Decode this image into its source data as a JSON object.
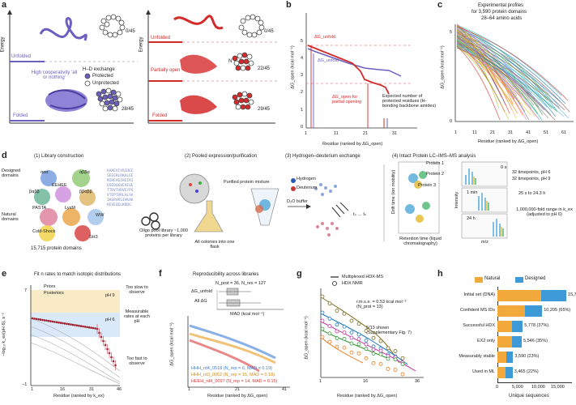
{
  "panels": {
    "a": {
      "letter": "a",
      "left": {
        "unfolded": "Unfolded",
        "folded": "Folded",
        "energy": "Energy",
        "count_top": "0/45",
        "count_bottom": "28/45",
        "legend_title": "H–D exchange",
        "protected": "Protected",
        "unprotected": "Unprotected",
        "note": "High cooperativity 'all or nothing'"
      },
      "right": {
        "unfolded": "Unfolded",
        "partially_open": "Partially open",
        "folded": "Folded",
        "energy": "Energy",
        "count_top": "0/45",
        "count_mid": "22/45",
        "count_bottom": "29/45",
        "n_label": "N"
      }
    },
    "b": {
      "letter": "b",
      "ylabel": "ΔG_open (kcal mol⁻¹)",
      "xlabel": "Residue (ranked by ΔG_open)",
      "dg_unfold": "ΔG_unfold",
      "dg_unfold2": "ΔG_unfold",
      "dg_open": "ΔG_open for partial opening",
      "expected": "Expected number of protected residues (H-bonding backbone amides)",
      "yticks": [
        "0",
        "1",
        "2",
        "3",
        "4",
        "5"
      ],
      "xticks": [
        "1",
        "11",
        "21",
        "31"
      ]
    },
    "c": {
      "letter": "c",
      "title1": "Experimental profiles",
      "title2": "for 3,590 protein domains",
      "title3": "28–64 amino acids",
      "ylabel": "ΔG_open (kcal mol⁻¹)",
      "xlabel": "Residue (ranked by ΔG_open)",
      "yticks": [
        "0",
        "1",
        "2",
        "3",
        "4",
        "5"
      ],
      "xticks": [
        "1",
        "11",
        "21",
        "31",
        "41",
        "51",
        "61"
      ]
    },
    "d": {
      "letter": "d",
      "step1": "(1) Library construction",
      "step2": "(2) Pooled expression/purification",
      "step3": "(3) Hydrogen–deuterium exchange",
      "step4": "(4) Intact Protein LC–IMS–MS analysis",
      "designed": "Designed domains",
      "natural": "Natural domains",
      "domains": {
        "aaa": "ααα",
        "abba": "αββα",
        "bab": "βαββ",
        "bbab": "ββαββ",
        "eehee": "EEHEE",
        "pasta": "PASTA",
        "lysm": "LysM",
        "ww": "WW",
        "cold_shock": "Cold-Shock",
        "sh3": "SH3"
      },
      "count": "15,715 protein domains",
      "oligo": "Oligo pool library ~1,000 proteins per library",
      "purified": "Purified protein mixture",
      "colonies": "All colonies into one flask",
      "hydrogen": "Hydrogen",
      "deuterium": "Deuterium",
      "d2o": "D₂O buffer",
      "t_range": "t₀ … tₙ",
      "protein1": "Protein 1",
      "protein2": "Protein 2",
      "protein3": "Protein 3",
      "drift": "Drift time (ion mobility)",
      "retention": "Retention time (liquid chromatography)",
      "intensity": "Intensity",
      "mz": "m/z",
      "times": [
        "0 s",
        "1 min",
        "24 h"
      ],
      "info1": "32 timepoints, pH 6",
      "info2": "32 timepoints, pH 9",
      "info3": "25 s to 24.3 h",
      "info4": "1,000,000-fold range in k_ex (adjusted to pH 6)"
    },
    "e": {
      "letter": "e",
      "title": "Fit n rates to match isotopic distributions",
      "legend_priors": "Priors",
      "legend_posteriors": "Posteriors",
      "ylabel": "−log₁₀ k_ex(pH 6), s⁻¹",
      "xlabel": "Residue (ranked by k_ex)",
      "too_slow": "Too slow to observe",
      "measurable": "Measurable rates at each pH",
      "too_fast": "Too fast to observe",
      "ph9": "pH 9",
      "ph6": "pH 6",
      "yticks": [
        "−1",
        "0",
        "1",
        "2",
        "3",
        "4",
        "5",
        "6",
        "7"
      ],
      "xticks": [
        "1",
        "6",
        "11",
        "16",
        "21",
        "26",
        "31",
        "36",
        "41",
        "46"
      ],
      "curve_labels": [
        "95",
        "75",
        "50",
        "25",
        "5"
      ]
    },
    "f": {
      "letter": "f",
      "title": "Reproducibility across libraries",
      "n_stats": "N_prot = 36, N_res = 127",
      "dg_unfold": "ΔG_unfold",
      "all_dg": "All ΔG",
      "mad_label": "MAD (kcal mol⁻¹)",
      "mad_ticks": [
        "0",
        "0.2",
        "0.4",
        "0.6",
        "0.8",
        "1.0"
      ],
      "ylabel": "ΔG_open (kcal mol⁻¹)",
      "xlabel": "Residue (ranked by ΔG_open)",
      "yticks": [
        "0",
        "1",
        "2",
        "3",
        "4",
        "5"
      ],
      "xticks": [
        "1",
        "6",
        "11",
        "16",
        "21",
        "26",
        "31",
        "36",
        "41"
      ],
      "legend": [
        {
          "name": "HHH_rd4_0518 (N_rep = 6, MAD = 0.19)",
          "color": "#3b7dd8"
        },
        {
          "name": "HHH_rd3_0062 (N_rep = 15, MAD = 0.18)",
          "color": "#e8a83a"
        },
        {
          "name": "HEEH_rd4_0097 (N_rep = 14, MAD = 0.15)",
          "color": "#d93a3a"
        }
      ]
    },
    "g": {
      "letter": "g",
      "legend_line": "Multiplexed HDX-MS",
      "legend_dot": "HDX NMR",
      "rmse": "r.m.s.e. = 0.53 kcal mol⁻¹ (N_prot = 13)",
      "shown": "5/13 shown (Supplementary Fig. 7)",
      "ylabel": "ΔG_open (kcal mol⁻¹)",
      "xlabel": "Residue (ranked by ΔG_open)",
      "yticks": [
        "0",
        "1",
        "2",
        "3",
        "4",
        "5"
      ],
      "xticks": [
        "1",
        "6",
        "11",
        "16",
        "21",
        "26",
        "31",
        "36"
      ]
    },
    "h": {
      "letter": "h",
      "legend_natural": "Natural",
      "legend_designed": "Designed",
      "xlabel": "Unique sequences",
      "xticks": [
        "0",
        "5,000",
        "10,000",
        "15,000"
      ],
      "natural_color": "#f2a93b",
      "designed_color": "#3d9ad6"
    }
  },
  "chart_data": [
    {
      "type": "bar",
      "panel": "h",
      "categories": [
        "Initial set (DNA)",
        "Confident MS IDs",
        "Successful HDX",
        "EX2 only",
        "Measurably stable",
        "Used in ML"
      ],
      "series": [
        {
          "name": "Natural",
          "values": [
            10000,
            6300,
            3400,
            3300,
            2000,
            1900
          ]
        },
        {
          "name": "Designed",
          "values": [
            5715,
            3905,
            2378,
            2246,
            1590,
            1565
          ]
        }
      ],
      "labels": [
        "15,715",
        "10,205 (65%)",
        "5,778 (37%)",
        "5,546 (35%)",
        "3,590 (23%)",
        "3,465 (22%)"
      ],
      "xlabel": "Unique sequences",
      "xlim": [
        0,
        17000
      ]
    }
  ]
}
